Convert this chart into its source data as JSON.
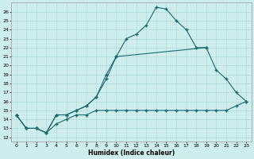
{
  "xlabel": "Humidex (Indice chaleur)",
  "background_color": "#ceeeed",
  "grid_color": "#aad8d6",
  "line_color": "#1a6b6b",
  "xlim": [
    -0.5,
    23.5
  ],
  "ylim": [
    11.5,
    27.0
  ],
  "xticks": [
    0,
    1,
    2,
    3,
    4,
    5,
    6,
    7,
    8,
    9,
    10,
    11,
    12,
    13,
    14,
    15,
    16,
    17,
    18,
    19,
    20,
    21,
    22,
    23
  ],
  "yticks": [
    12,
    13,
    14,
    15,
    16,
    17,
    18,
    19,
    20,
    21,
    22,
    23,
    24,
    25,
    26
  ],
  "line1_x": [
    0,
    1,
    2,
    3,
    4,
    5,
    6,
    7,
    8,
    9,
    10,
    11,
    12,
    13,
    14,
    15,
    16,
    17,
    18,
    19
  ],
  "line1_y": [
    14.5,
    13.0,
    13.0,
    12.5,
    14.5,
    14.5,
    15.0,
    15.5,
    16.5,
    19.0,
    21.0,
    23.0,
    23.5,
    24.5,
    26.5,
    26.3,
    25.0,
    24.0,
    22.0,
    22.0
  ],
  "line2_x": [
    0,
    1,
    2,
    3,
    4,
    5,
    6,
    7,
    8,
    9,
    10,
    19,
    20,
    21,
    22,
    23
  ],
  "line2_y": [
    14.5,
    13.0,
    13.0,
    12.5,
    14.5,
    14.5,
    15.0,
    15.5,
    16.5,
    18.5,
    21.0,
    22.0,
    19.5,
    18.5,
    17.0,
    16.0
  ],
  "line3_x": [
    0,
    1,
    2,
    3,
    4,
    5,
    6,
    7,
    8,
    9,
    10,
    11,
    12,
    13,
    14,
    15,
    16,
    17,
    18,
    19,
    20,
    21,
    22,
    23
  ],
  "line3_y": [
    14.5,
    13.0,
    13.0,
    12.5,
    13.5,
    14.0,
    14.5,
    14.5,
    15.0,
    15.0,
    15.0,
    15.0,
    15.0,
    15.0,
    15.0,
    15.0,
    15.0,
    15.0,
    15.0,
    15.0,
    15.0,
    15.0,
    15.5,
    16.0
  ]
}
